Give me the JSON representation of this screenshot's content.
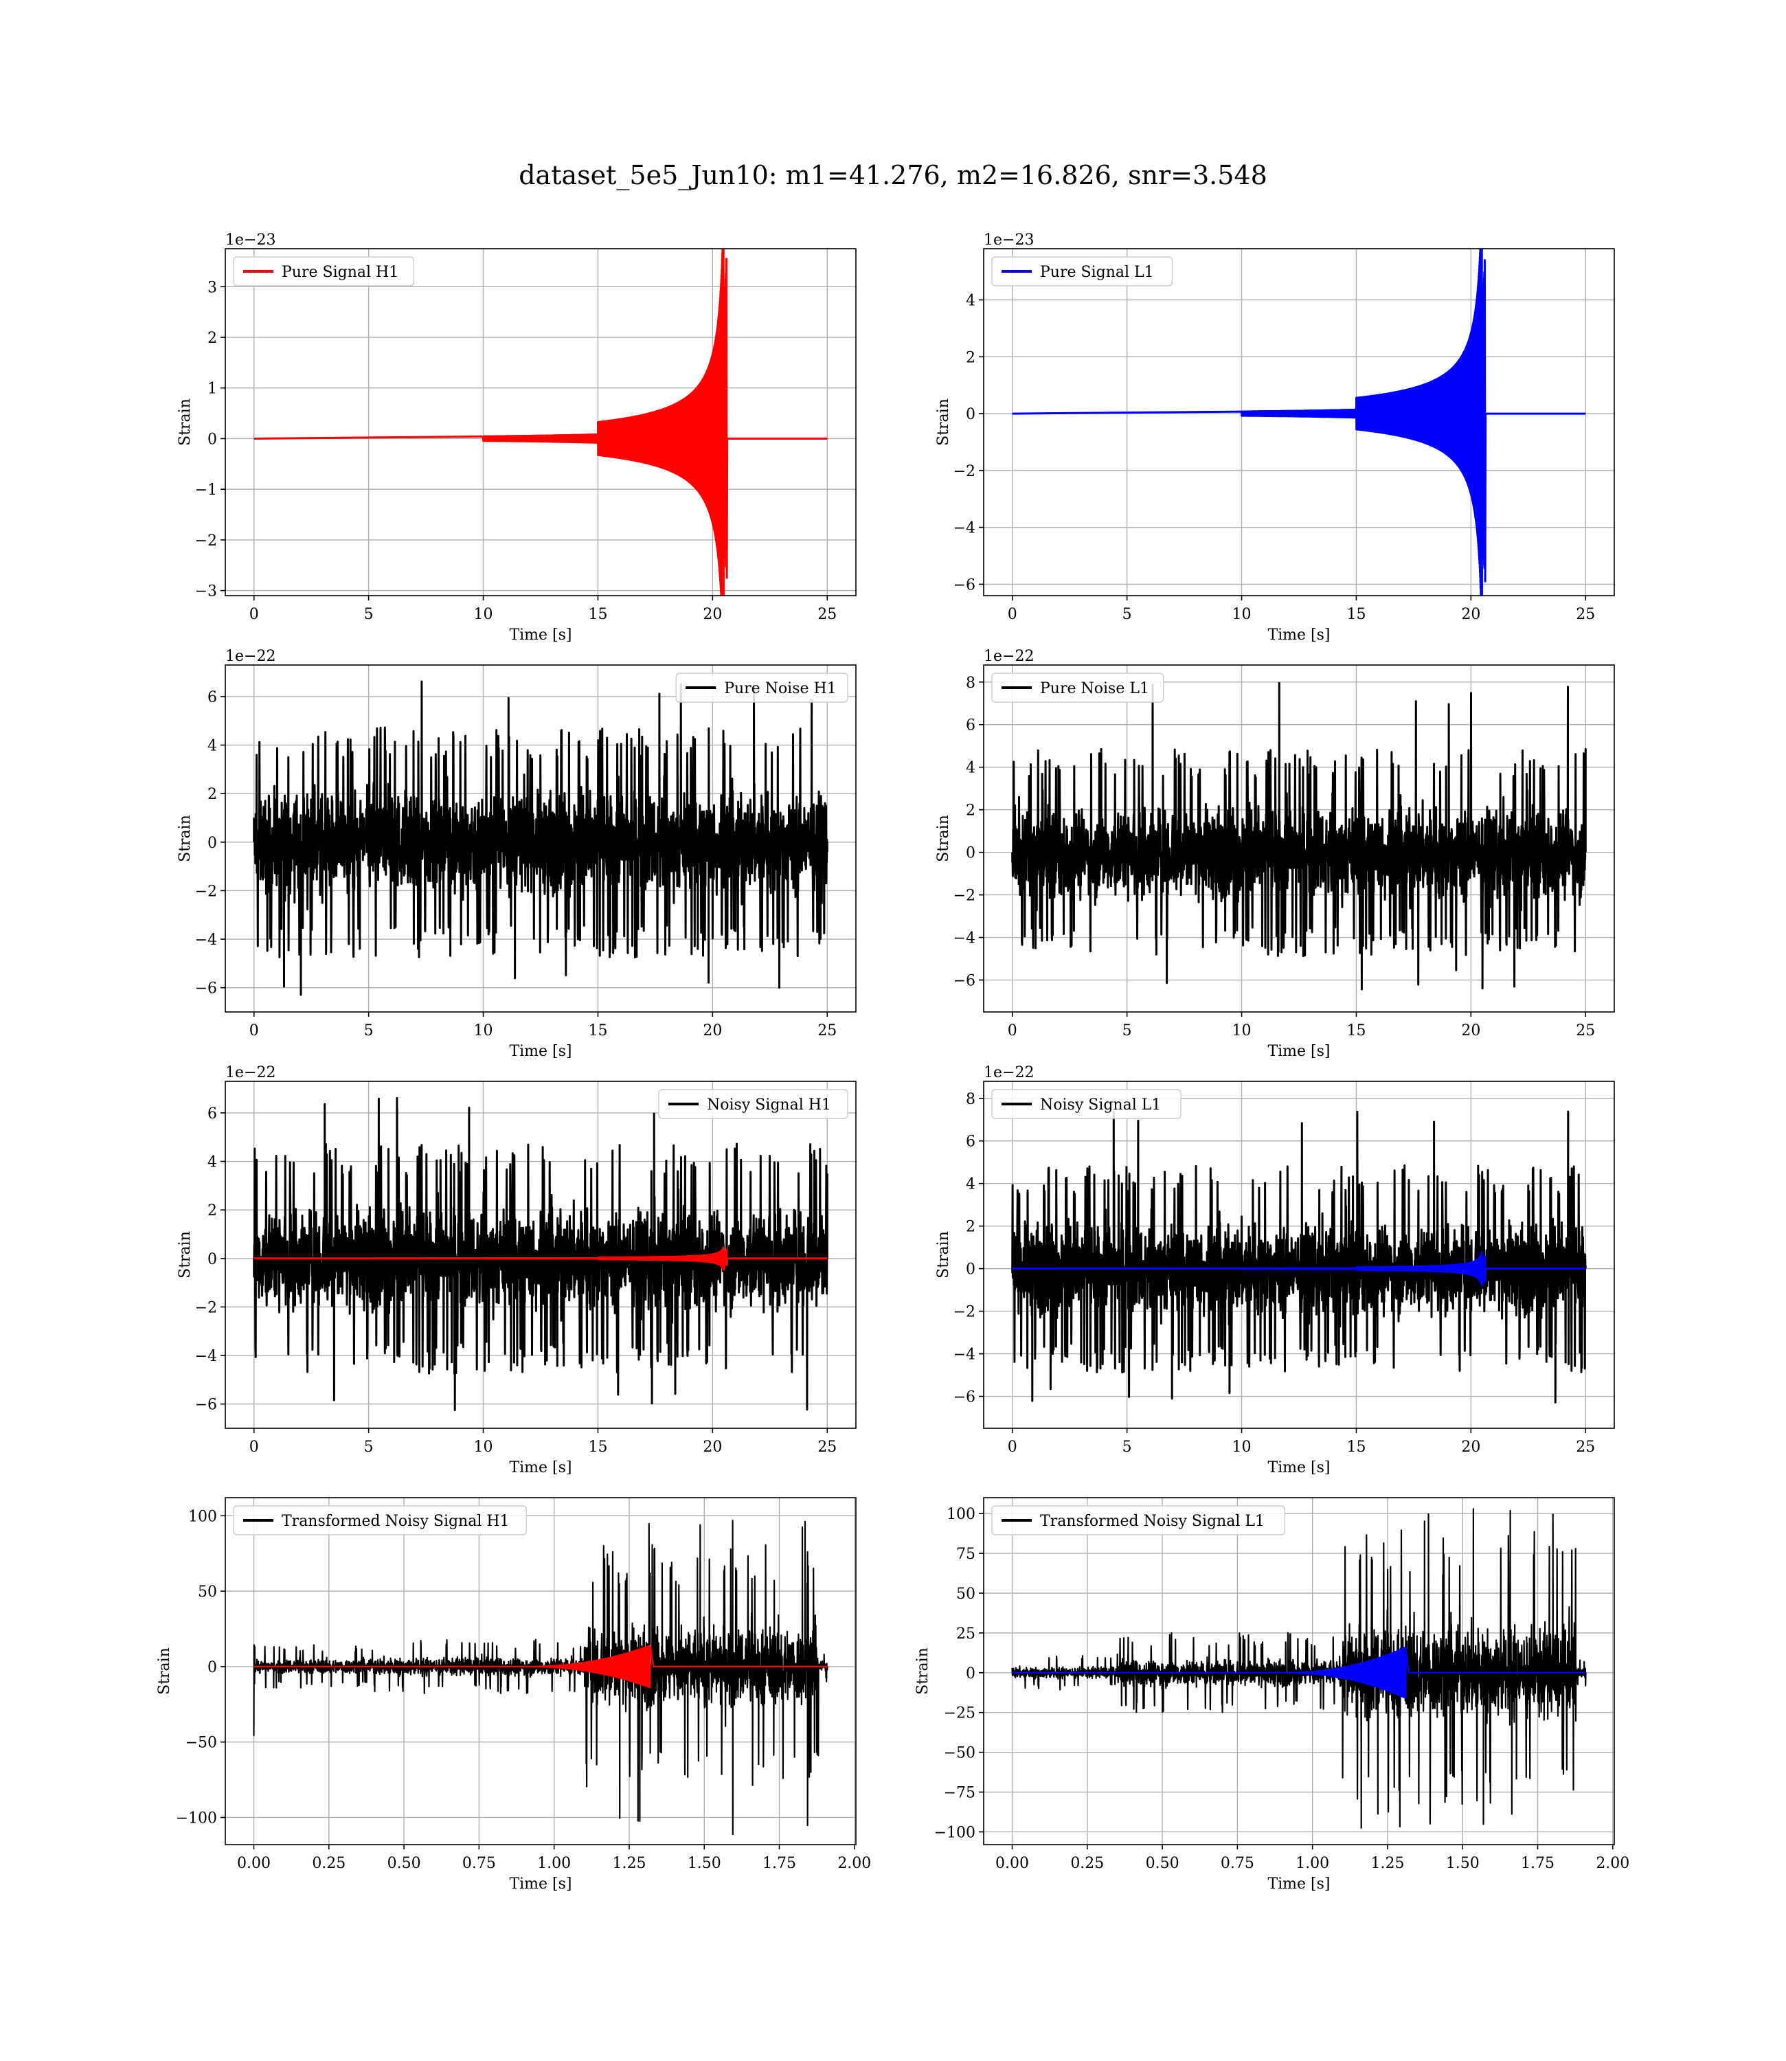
{
  "figure_title": "dataset_5e5_Jun10: m1=41.276, m2=16.826, snr=3.548",
  "colors": {
    "h1_signal": "#ff0000",
    "l1_signal": "#0000ff",
    "noise": "#000000",
    "grid": "#b0b0b0"
  },
  "chart_data": [
    {
      "type": "line",
      "id": "pure-signal-h1",
      "xlabel": "Time [s]",
      "ylabel": "Strain",
      "offset_text": "1e−23",
      "xlim": [
        -1.25,
        26.25
      ],
      "ylim": [
        -3.1,
        3.75
      ],
      "xticks": [
        0,
        5,
        10,
        15,
        20,
        25
      ],
      "xtick_labels": [
        "0",
        "5",
        "10",
        "15",
        "20",
        "25"
      ],
      "yticks": [
        -3,
        -2,
        -1,
        0,
        1,
        2,
        3
      ],
      "ytick_labels": [
        "−3",
        "−2",
        "−1",
        "0",
        "1",
        "2",
        "3"
      ],
      "legend": {
        "placement": "upper left",
        "entries": [
          {
            "label": "Pure Signal H1",
            "color": "#ff0000"
          }
        ]
      },
      "series": [
        {
          "name": "Pure Signal H1",
          "kind": "chirp",
          "color": "#ff0000",
          "t_range": [
            0,
            25
          ],
          "t_merger": 20.6,
          "peak_pos": 3.55,
          "peak_neg": -2.75,
          "scale": 1.0
        }
      ]
    },
    {
      "type": "line",
      "id": "pure-signal-l1",
      "xlabel": "Time [s]",
      "ylabel": "Strain",
      "offset_text": "1e−23",
      "xlim": [
        -1.25,
        26.25
      ],
      "ylim": [
        -6.4,
        5.8
      ],
      "xticks": [
        0,
        5,
        10,
        15,
        20,
        25
      ],
      "xtick_labels": [
        "0",
        "5",
        "10",
        "15",
        "20",
        "25"
      ],
      "yticks": [
        -6,
        -4,
        -2,
        0,
        2,
        4
      ],
      "ytick_labels": [
        "−6",
        "−4",
        "−2",
        "0",
        "2",
        "4"
      ],
      "legend": {
        "placement": "upper left",
        "entries": [
          {
            "label": "Pure Signal L1",
            "color": "#0000ff"
          }
        ]
      },
      "series": [
        {
          "name": "Pure Signal L1",
          "kind": "chirp",
          "color": "#0000ff",
          "t_range": [
            0,
            25
          ],
          "t_merger": 20.6,
          "peak_pos": 5.4,
          "peak_neg": -5.9,
          "scale": 1.7
        }
      ]
    },
    {
      "type": "line",
      "id": "pure-noise-h1",
      "xlabel": "Time [s]",
      "ylabel": "Strain",
      "offset_text": "1e−22",
      "xlim": [
        -1.25,
        26.25
      ],
      "ylim": [
        -7.0,
        7.3
      ],
      "xticks": [
        0,
        5,
        10,
        15,
        20,
        25
      ],
      "xtick_labels": [
        "0",
        "5",
        "10",
        "15",
        "20",
        "25"
      ],
      "yticks": [
        -6,
        -4,
        -2,
        0,
        2,
        4,
        6
      ],
      "ytick_labels": [
        "−6",
        "−4",
        "−2",
        "0",
        "2",
        "4",
        "6"
      ],
      "legend": {
        "placement": "upper right",
        "entries": [
          {
            "label": "Pure Noise H1",
            "color": "#000000"
          }
        ]
      },
      "series": [
        {
          "name": "Pure Noise H1",
          "kind": "noise",
          "color": "#000000",
          "t_range": [
            0,
            25
          ],
          "band_pos": 3.8,
          "band_neg": -3.8,
          "spike_max": 6.7,
          "spike_min": -6.3
        }
      ]
    },
    {
      "type": "line",
      "id": "pure-noise-l1",
      "xlabel": "Time [s]",
      "ylabel": "Strain",
      "offset_text": "1e−22",
      "xlim": [
        -1.25,
        26.25
      ],
      "ylim": [
        -7.5,
        8.8
      ],
      "xticks": [
        0,
        5,
        10,
        15,
        20,
        25
      ],
      "xtick_labels": [
        "0",
        "5",
        "10",
        "15",
        "20",
        "25"
      ],
      "yticks": [
        -6,
        -4,
        -2,
        0,
        2,
        4,
        6,
        8
      ],
      "ytick_labels": [
        "−6",
        "−4",
        "−2",
        "0",
        "2",
        "4",
        "6",
        "8"
      ],
      "legend": {
        "placement": "upper left",
        "entries": [
          {
            "label": "Pure Noise L1",
            "color": "#000000"
          }
        ]
      },
      "series": [
        {
          "name": "Pure Noise L1",
          "kind": "noise",
          "color": "#000000",
          "t_range": [
            0,
            25
          ],
          "band_pos": 3.9,
          "band_neg": -3.9,
          "spike_max": 8.0,
          "spike_min": -6.5
        }
      ]
    },
    {
      "type": "line",
      "id": "noisy-signal-h1",
      "xlabel": "Time [s]",
      "ylabel": "Strain",
      "offset_text": "1e−22",
      "xlim": [
        -1.25,
        26.25
      ],
      "ylim": [
        -7.0,
        7.3
      ],
      "xticks": [
        0,
        5,
        10,
        15,
        20,
        25
      ],
      "xtick_labels": [
        "0",
        "5",
        "10",
        "15",
        "20",
        "25"
      ],
      "yticks": [
        -6,
        -4,
        -2,
        0,
        2,
        4,
        6
      ],
      "ytick_labels": [
        "−6",
        "−4",
        "−2",
        "0",
        "2",
        "4",
        "6"
      ],
      "legend": {
        "placement": "upper right",
        "entries": [
          {
            "label": "Noisy Signal H1",
            "color": "#000000"
          }
        ]
      },
      "series": [
        {
          "name": "Noisy Signal H1",
          "kind": "noise",
          "color": "#000000",
          "t_range": [
            0,
            25
          ],
          "band_pos": 3.8,
          "band_neg": -3.8,
          "spike_max": 6.7,
          "spike_min": -6.3
        },
        {
          "kind": "chirp",
          "color": "#ff0000",
          "t_range": [
            0,
            25
          ],
          "t_merger": 20.6,
          "peak_pos": 0.36,
          "peak_neg": -0.28,
          "scale": 0.1
        }
      ]
    },
    {
      "type": "line",
      "id": "noisy-signal-l1",
      "xlabel": "Time [s]",
      "ylabel": "Strain",
      "offset_text": "1e−22",
      "xlim": [
        -1.25,
        26.25
      ],
      "ylim": [
        -7.5,
        8.8
      ],
      "xticks": [
        0,
        5,
        10,
        15,
        20,
        25
      ],
      "xtick_labels": [
        "0",
        "5",
        "10",
        "15",
        "20",
        "25"
      ],
      "yticks": [
        -6,
        -4,
        -2,
        0,
        2,
        4,
        6,
        8
      ],
      "ytick_labels": [
        "−6",
        "−4",
        "−2",
        "0",
        "2",
        "4",
        "6",
        "8"
      ],
      "legend": {
        "placement": "upper left",
        "entries": [
          {
            "label": "Noisy Signal L1",
            "color": "#000000"
          }
        ]
      },
      "series": [
        {
          "name": "Noisy Signal L1",
          "kind": "noise",
          "color": "#000000",
          "t_range": [
            0,
            25
          ],
          "band_pos": 3.9,
          "band_neg": -3.9,
          "spike_max": 8.0,
          "spike_min": -6.5
        },
        {
          "kind": "chirp",
          "color": "#0000ff",
          "t_range": [
            0,
            25
          ],
          "t_merger": 20.6,
          "peak_pos": 0.55,
          "peak_neg": -0.6,
          "scale": 0.17
        }
      ]
    },
    {
      "type": "line",
      "id": "transformed-noisy-signal-h1",
      "xlabel": "Time [s]",
      "ylabel": "Strain",
      "offset_text": "",
      "xlim": [
        -0.095,
        2.005
      ],
      "ylim": [
        -118,
        112
      ],
      "xticks": [
        0,
        0.25,
        0.5,
        0.75,
        1.0,
        1.25,
        1.5,
        1.75,
        2.0
      ],
      "xtick_labels": [
        "0.00",
        "0.25",
        "0.50",
        "0.75",
        "1.00",
        "1.25",
        "1.50",
        "1.75",
        "2.00"
      ],
      "yticks": [
        -100,
        -50,
        0,
        50,
        100
      ],
      "ytick_labels": [
        "−100",
        "−50",
        "0",
        "50",
        "100"
      ],
      "legend": {
        "placement": "upper left",
        "entries": [
          {
            "label": "Transformed Noisy Signal H1",
            "color": "#000000"
          }
        ]
      },
      "series": [
        {
          "name": "Transformed Noisy Signal H1",
          "kind": "tnoise",
          "color": "#000000",
          "t_range": [
            0,
            1.91
          ],
          "segments": [
            [
              0,
              0.4,
              8
            ],
            [
              0.4,
              1.1,
              10
            ],
            [
              1.1,
              1.88,
              45
            ],
            [
              1.88,
              1.91,
              6
            ]
          ],
          "spike_max": 105,
          "spike_min": -112,
          "t_start_spike": -46
        },
        {
          "kind": "tchirp",
          "color": "#ff0000",
          "t_range": [
            0,
            1.91
          ],
          "t_merger": 1.32,
          "peak": 14
        }
      ]
    },
    {
      "type": "line",
      "id": "transformed-noisy-signal-l1",
      "xlabel": "Time [s]",
      "ylabel": "Strain",
      "offset_text": "",
      "xlim": [
        -0.095,
        2.005
      ],
      "ylim": [
        -108,
        110
      ],
      "xticks": [
        0,
        0.25,
        0.5,
        0.75,
        1.0,
        1.25,
        1.5,
        1.75,
        2.0
      ],
      "xtick_labels": [
        "0.00",
        "0.25",
        "0.50",
        "0.75",
        "1.00",
        "1.25",
        "1.50",
        "1.75",
        "2.00"
      ],
      "yticks": [
        -100,
        -75,
        -50,
        -25,
        0,
        25,
        50,
        75,
        100
      ],
      "ytick_labels": [
        "−100",
        "−75",
        "−50",
        "−25",
        "0",
        "25",
        "50",
        "75",
        "100"
      ],
      "legend": {
        "placement": "upper left",
        "entries": [
          {
            "label": "Transformed Noisy Signal L1",
            "color": "#000000"
          }
        ]
      },
      "series": [
        {
          "name": "Transformed Noisy Signal L1",
          "kind": "tnoise",
          "color": "#000000",
          "t_range": [
            0,
            1.91
          ],
          "segments": [
            [
              0,
              0.35,
              6
            ],
            [
              0.35,
              1.1,
              14
            ],
            [
              1.1,
              1.88,
              50
            ],
            [
              1.88,
              1.91,
              5
            ]
          ],
          "spike_max": 103,
          "spike_min": -100,
          "t_start_spike": 3
        },
        {
          "kind": "tchirp",
          "color": "#0000ff",
          "t_range": [
            0,
            1.91
          ],
          "t_merger": 1.31,
          "peak": 16
        }
      ]
    }
  ]
}
